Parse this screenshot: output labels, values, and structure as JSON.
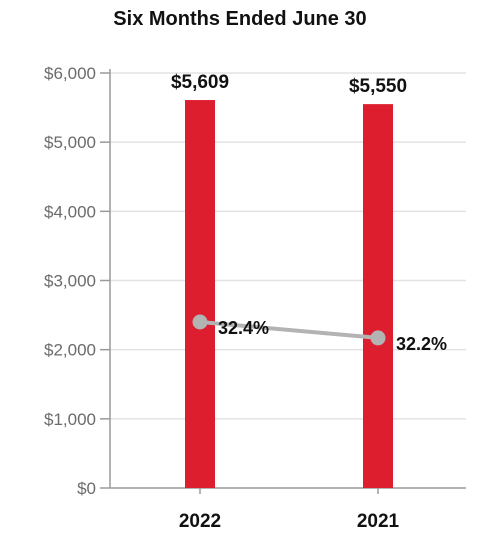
{
  "chart_data": {
    "type": "bar",
    "title": "Six Months Ended June 30",
    "categories": [
      "2022",
      "2021"
    ],
    "series": [
      {
        "type": "bar",
        "values": [
          5609,
          5550
        ],
        "labels": [
          "$5,609",
          "$5,550"
        ],
        "color": "#dc1e2e"
      },
      {
        "type": "line",
        "values": [
          2400,
          2170
        ],
        "labels": [
          "32.4%",
          "32.2%"
        ],
        "percent": [
          32.4,
          32.2
        ],
        "color": "#b3b3b3"
      }
    ],
    "y_ticks": [
      0,
      1000,
      2000,
      3000,
      4000,
      5000,
      6000
    ],
    "y_tick_labels": [
      "$0",
      "$1,000",
      "$2,000",
      "$3,000",
      "$4,000",
      "$5,000",
      "$6,000"
    ],
    "ylim": [
      0,
      6000
    ],
    "grid": true
  }
}
